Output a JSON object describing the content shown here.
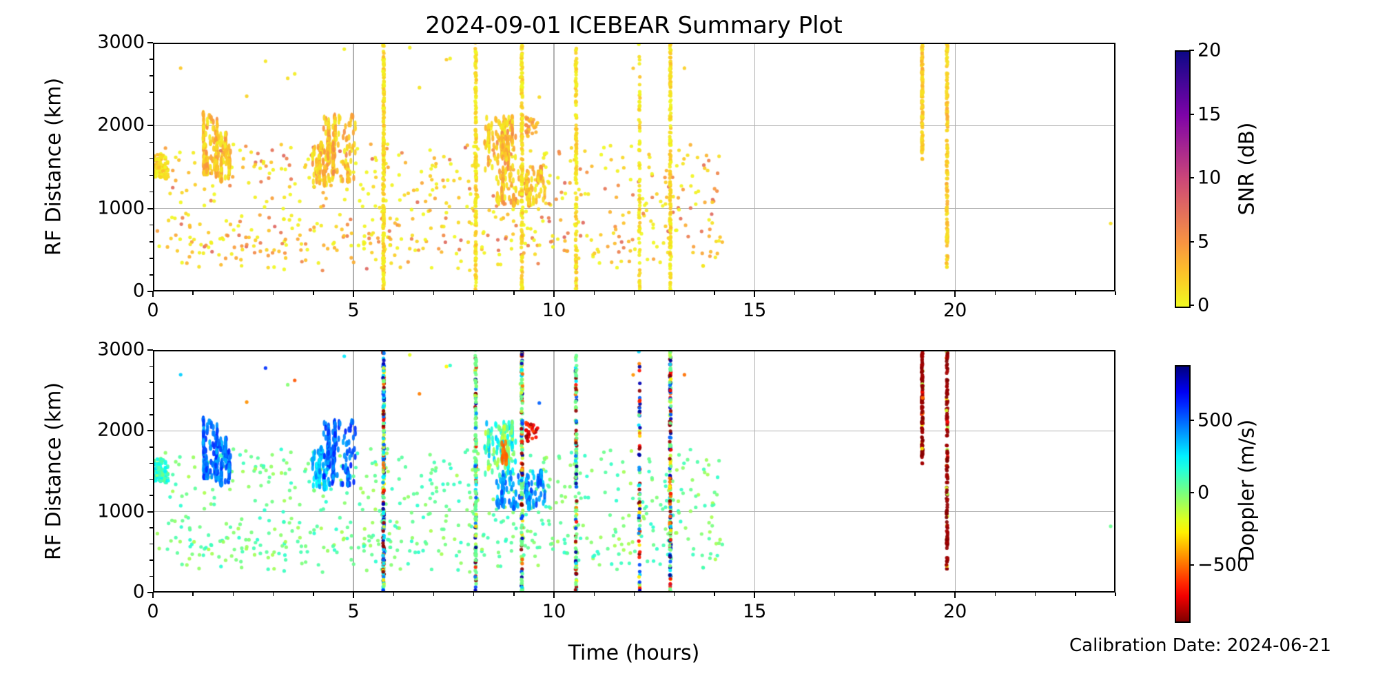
{
  "calibration_note": "Calibration Date: 2024-06-21",
  "chart_data": {
    "type": "scatter",
    "title": "2024-09-01 ICEBEAR Summary Plot",
    "xlabel": "Time (hours)",
    "ylabel": "RF Distance (km)",
    "xlim": [
      0,
      24
    ],
    "ylim": [
      0,
      3000
    ],
    "xticks": [
      0,
      5,
      10,
      15,
      20
    ],
    "yticks": [
      0,
      1000,
      2000,
      3000
    ],
    "x_minor_step": 1,
    "y_minor_step": 200,
    "grid": true,
    "grid_color": "#b0b0b0",
    "background_color": "#ffffff",
    "colorbars": [
      {
        "name": "snr",
        "label": "SNR (dB)",
        "range": [
          0,
          20
        ],
        "cmap": "plasma_r",
        "ticks": [
          {
            "v": 0,
            "label": "0"
          },
          {
            "v": 5,
            "label": "5"
          },
          {
            "v": 10,
            "label": "10"
          },
          {
            "v": 15,
            "label": "15"
          },
          {
            "v": 20,
            "label": "20"
          }
        ]
      },
      {
        "name": "doppler",
        "label": "Doppler (m/s)",
        "range": [
          -880,
          880
        ],
        "cmap": "jet_r",
        "ticks": [
          {
            "v": -500,
            "label": "−500"
          },
          {
            "v": 0,
            "label": "0"
          },
          {
            "v": 500,
            "label": "500"
          }
        ]
      }
    ],
    "colormaps": {
      "plasma": [
        [
          0,
          "#0d0887"
        ],
        [
          0.25,
          "#7e03a8"
        ],
        [
          0.5,
          "#cc4778"
        ],
        [
          0.75,
          "#f89441"
        ],
        [
          0.875,
          "#fdc527"
        ],
        [
          1,
          "#f0f921"
        ]
      ],
      "jet": [
        [
          0,
          "#000080"
        ],
        [
          0.11,
          "#0000ff"
        ],
        [
          0.365,
          "#00ffff"
        ],
        [
          0.5,
          "#7dff7a"
        ],
        [
          0.635,
          "#ffff00"
        ],
        [
          0.89,
          "#ff0000"
        ],
        [
          1,
          "#800000"
        ]
      ]
    },
    "doppler_categories": [
      -850,
      -650,
      -480,
      -280,
      -120,
      30,
      280,
      450,
      550,
      820
    ],
    "groups": [
      {
        "name": "background-main",
        "t": [
          0.08,
          14.2
        ],
        "y": [
          420,
          1780
        ],
        "n": 560,
        "snr": [
          0,
          8
        ],
        "snr_pow": 2.2,
        "doppler": [
          -90,
          160
        ],
        "style": "dot"
      },
      {
        "name": "background-low",
        "t": [
          0.3,
          14.2
        ],
        "y": [
          250,
          720
        ],
        "n": 110,
        "snr": [
          0,
          8
        ],
        "snr_pow": 2.0,
        "doppler": [
          -90,
          160
        ],
        "style": "dot"
      },
      {
        "name": "patch-start",
        "t": [
          0.02,
          0.38
        ],
        "y": [
          1360,
          1660
        ],
        "n": 90,
        "snr": [
          0,
          3
        ],
        "snr_pow": 1.5,
        "doppler": [
          -30,
          300
        ],
        "style": "dot"
      },
      {
        "name": "cluster-0130-a",
        "t": [
          1.25,
          1.62
        ],
        "y": [
          1430,
          2150
        ],
        "n": 230,
        "snr": [
          0.5,
          5.5
        ],
        "snr_pow": 1.4,
        "doppler": [
          360,
          630
        ],
        "style": "streaky"
      },
      {
        "name": "cluster-0130-b",
        "t": [
          1.55,
          1.95
        ],
        "y": [
          1340,
          1900
        ],
        "n": 190,
        "snr": [
          0.5,
          5.5
        ],
        "snr_pow": 1.4,
        "doppler": [
          360,
          630
        ],
        "style": "streaky"
      },
      {
        "name": "cluster-0430-a",
        "t": [
          3.95,
          4.4
        ],
        "y": [
          1290,
          1780
        ],
        "n": 210,
        "snr": [
          0.5,
          5.5
        ],
        "snr_pow": 1.4,
        "doppler": [
          230,
          480
        ],
        "style": "streaky"
      },
      {
        "name": "cluster-0430-b",
        "t": [
          4.25,
          5.05
        ],
        "y": [
          1340,
          2120
        ],
        "n": 330,
        "snr": [
          0.5,
          6
        ],
        "snr_pow": 1.4,
        "doppler": [
          380,
          640
        ],
        "style": "streaky"
      },
      {
        "name": "cluster-0900-upper",
        "t": [
          8.25,
          9.05
        ],
        "y": [
          1430,
          2100
        ],
        "n": 260,
        "snr": [
          0.5,
          6
        ],
        "snr_pow": 1.4,
        "doppler": [
          -170,
          370
        ],
        "style": "streaky"
      },
      {
        "name": "cluster-0900-strand",
        "t": [
          8.7,
          8.82
        ],
        "y": [
          1450,
          1870
        ],
        "n": 30,
        "snr": [
          1,
          5
        ],
        "snr_pow": 1.0,
        "doppler": [
          -540,
          -420
        ],
        "style": "streaky"
      },
      {
        "name": "cluster-0900-lower",
        "t": [
          8.5,
          9.78
        ],
        "y": [
          1050,
          1490
        ],
        "n": 330,
        "snr": [
          0.5,
          6
        ],
        "snr_pow": 1.4,
        "doppler": [
          300,
          580
        ],
        "style": "streaky"
      },
      {
        "name": "cluster-0930-negative",
        "t": [
          9.25,
          9.6
        ],
        "y": [
          1870,
          2120
        ],
        "n": 26,
        "snr": [
          2,
          6
        ],
        "snr_pow": 1.0,
        "doppler": [
          -880,
          -550
        ],
        "style": "dot"
      },
      {
        "name": "sparse-high-altitude",
        "t": [
          0.3,
          14.0
        ],
        "y": [
          2150,
          2950
        ],
        "n": 14,
        "snr": [
          0,
          2.5
        ],
        "snr_pow": 1.0,
        "doppler": [
          -880,
          880
        ],
        "style": "dot"
      }
    ],
    "streaks": [
      {
        "name": "streak-5.75h",
        "t": 5.75,
        "n": 240,
        "segments": [
          [
            0,
            3000
          ]
        ],
        "snr": [
          0,
          3
        ],
        "weights": [
          2,
          1,
          1,
          1,
          1,
          2,
          1.5,
          1,
          1.5,
          1.5
        ]
      },
      {
        "name": "streak-8.05h",
        "t": 8.05,
        "n": 170,
        "segments": [
          [
            0,
            3000
          ]
        ],
        "snr": [
          0,
          3
        ],
        "weights": [
          1,
          0.5,
          0.5,
          0.5,
          1,
          6,
          0.5,
          0.3,
          0.5,
          0.7
        ]
      },
      {
        "name": "streak-9.2h",
        "t": 9.2,
        "n": 180,
        "segments": [
          [
            0,
            3000
          ]
        ],
        "snr": [
          0,
          3
        ],
        "weights": [
          1.2,
          0.5,
          0.8,
          0.8,
          1,
          5.5,
          0.6,
          0.3,
          0.5,
          0.8
        ]
      },
      {
        "name": "streak-10.55h",
        "t": 10.55,
        "n": 140,
        "segments": [
          [
            0,
            3000
          ]
        ],
        "snr": [
          0,
          3
        ],
        "weights": [
          1.5,
          0.3,
          0.3,
          0.3,
          0.5,
          6,
          0.5,
          0.2,
          0.3,
          0.5
        ]
      },
      {
        "name": "streak-12.13h",
        "t": 12.13,
        "n": 70,
        "segments": [
          [
            0,
            3000
          ]
        ],
        "snr": [
          0,
          3
        ],
        "weights": [
          1.5,
          1,
          0.8,
          0.8,
          0.5,
          1.5,
          1,
          0.5,
          1,
          1.5
        ]
      },
      {
        "name": "streak-12.9h",
        "t": 12.9,
        "n": 170,
        "segments": [
          [
            0,
            3000
          ]
        ],
        "snr": [
          0,
          3
        ],
        "weights": [
          1.5,
          0.7,
          1,
          1,
          1,
          4,
          1,
          0.5,
          0.8,
          1
        ]
      },
      {
        "name": "streak-19.18h",
        "t": 19.18,
        "n": 120,
        "segments": [
          [
            1590,
            3000
          ]
        ],
        "snr": [
          1,
          4
        ],
        "weights": [
          20,
          0.5,
          0.8,
          0.3,
          1.2,
          0,
          0,
          0,
          0,
          0
        ]
      },
      {
        "name": "streak-19.8h",
        "t": 19.8,
        "n": 140,
        "segments": [
          [
            290,
            470
          ],
          [
            550,
            2280
          ],
          [
            2320,
            3000
          ]
        ],
        "snr": [
          1,
          4
        ],
        "weights": [
          20,
          0.5,
          0.6,
          0.4,
          1.5,
          0,
          0,
          0,
          0,
          0
        ]
      }
    ],
    "extra_points": [
      {
        "t": 23.88,
        "y": 820,
        "snr": 1.2,
        "doppler": 40
      }
    ]
  }
}
